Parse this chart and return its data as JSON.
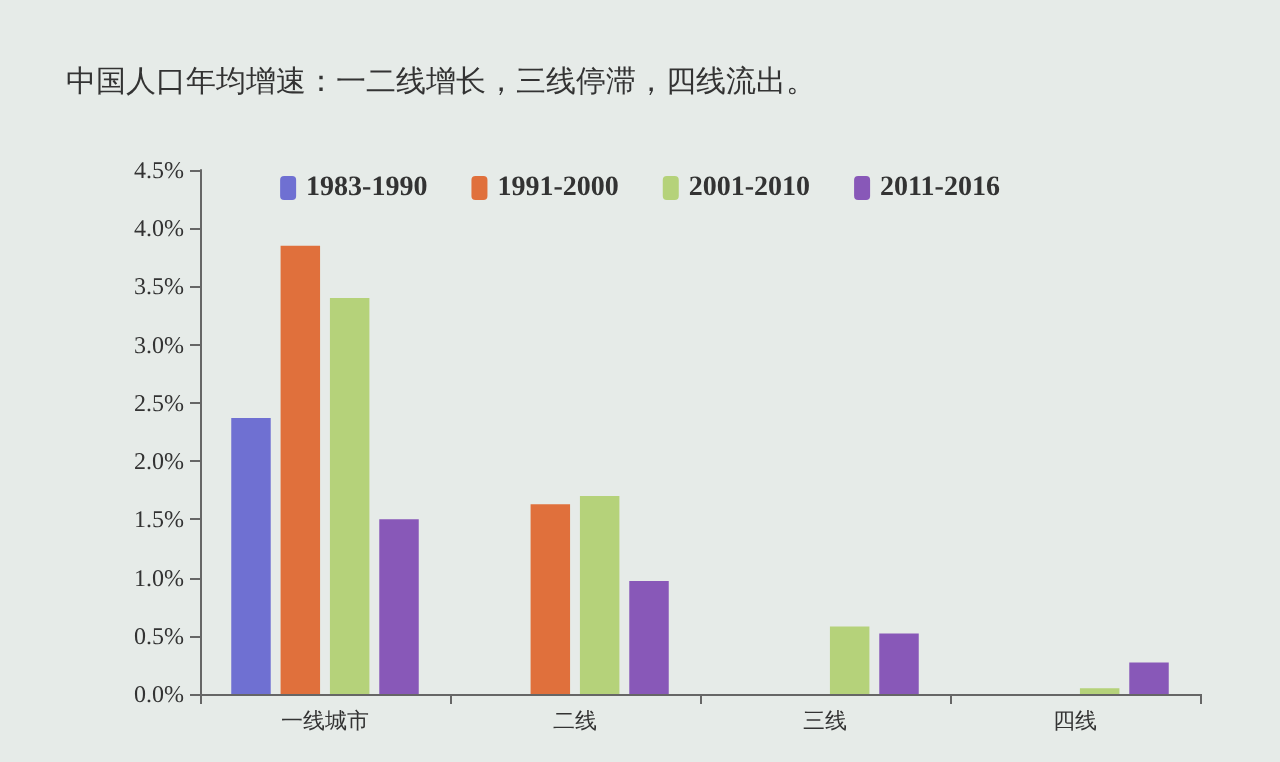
{
  "chart_data": {
    "type": "bar",
    "title": "中国人口年均增速：一二线增长，三线停滞，四线流出。",
    "categories": [
      "一线城市",
      "二线",
      "三线",
      "四线"
    ],
    "series": [
      {
        "name": "1983-1990",
        "color": "#6f70d2",
        "values": [
          2.37,
          null,
          null,
          null
        ]
      },
      {
        "name": "1991-2000",
        "color": "#e0703c",
        "values": [
          3.85,
          1.63,
          null,
          null
        ]
      },
      {
        "name": "2001-2010",
        "color": "#b5d27a",
        "values": [
          3.4,
          1.7,
          0.58,
          0.05
        ]
      },
      {
        "name": "2011-2016",
        "color": "#8858b8",
        "values": [
          1.5,
          0.97,
          0.52,
          0.27
        ]
      }
    ],
    "ylim": [
      0,
      4.5
    ],
    "yticks": [
      {
        "value": 0,
        "label": "0.0%"
      },
      {
        "value": 0.5,
        "label": "0.5%"
      },
      {
        "value": 1,
        "label": "1.0%"
      },
      {
        "value": 1.5,
        "label": "1.5%"
      },
      {
        "value": 2,
        "label": "2.0%"
      },
      {
        "value": 2.5,
        "label": "2.5%"
      },
      {
        "value": 3,
        "label": "3.0%"
      },
      {
        "value": 3.5,
        "label": "3.5%"
      },
      {
        "value": 4,
        "label": "4.0%"
      },
      {
        "value": 4.5,
        "label": "4.5%"
      }
    ],
    "grid": false,
    "legend": "top"
  }
}
